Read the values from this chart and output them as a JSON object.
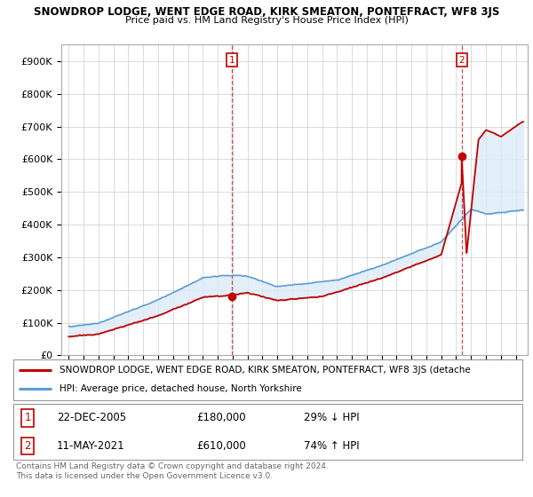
{
  "title": "SNOWDROP LODGE, WENT EDGE ROAD, KIRK SMEATON, PONTEFRACT, WF8 3JS",
  "subtitle": "Price paid vs. HM Land Registry's House Price Index (HPI)",
  "legend_line1": "SNOWDROP LODGE, WENT EDGE ROAD, KIRK SMEATON, PONTEFRACT, WF8 3JS (detache",
  "legend_line2": "HPI: Average price, detached house, North Yorkshire",
  "footer1": "Contains HM Land Registry data © Crown copyright and database right 2024.",
  "footer2": "This data is licensed under the Open Government Licence v3.0.",
  "sale1_date": "22-DEC-2005",
  "sale1_price": "£180,000",
  "sale1_hpi": "29% ↓ HPI",
  "sale2_date": "11-MAY-2021",
  "sale2_price": "£610,000",
  "sale2_hpi": "74% ↑ HPI",
  "hpi_color": "#5b9bd5",
  "hpi_fill_color": "#dbeaf7",
  "price_color": "#c00000",
  "ylim_max": 950000,
  "yticks": [
    0,
    100000,
    200000,
    300000,
    400000,
    500000,
    600000,
    700000,
    800000,
    900000
  ],
  "ytick_labels": [
    "£0",
    "£100K",
    "£200K",
    "£300K",
    "£400K",
    "£500K",
    "£600K",
    "£700K",
    "£800K",
    "£900K"
  ],
  "sale1_year": 2005.97,
  "sale1_value": 180000,
  "sale2_year": 2021.37,
  "sale2_value": 610000,
  "xmin": 1994.5,
  "xmax": 2025.8,
  "xtick_start": 1995,
  "xtick_end": 2025
}
